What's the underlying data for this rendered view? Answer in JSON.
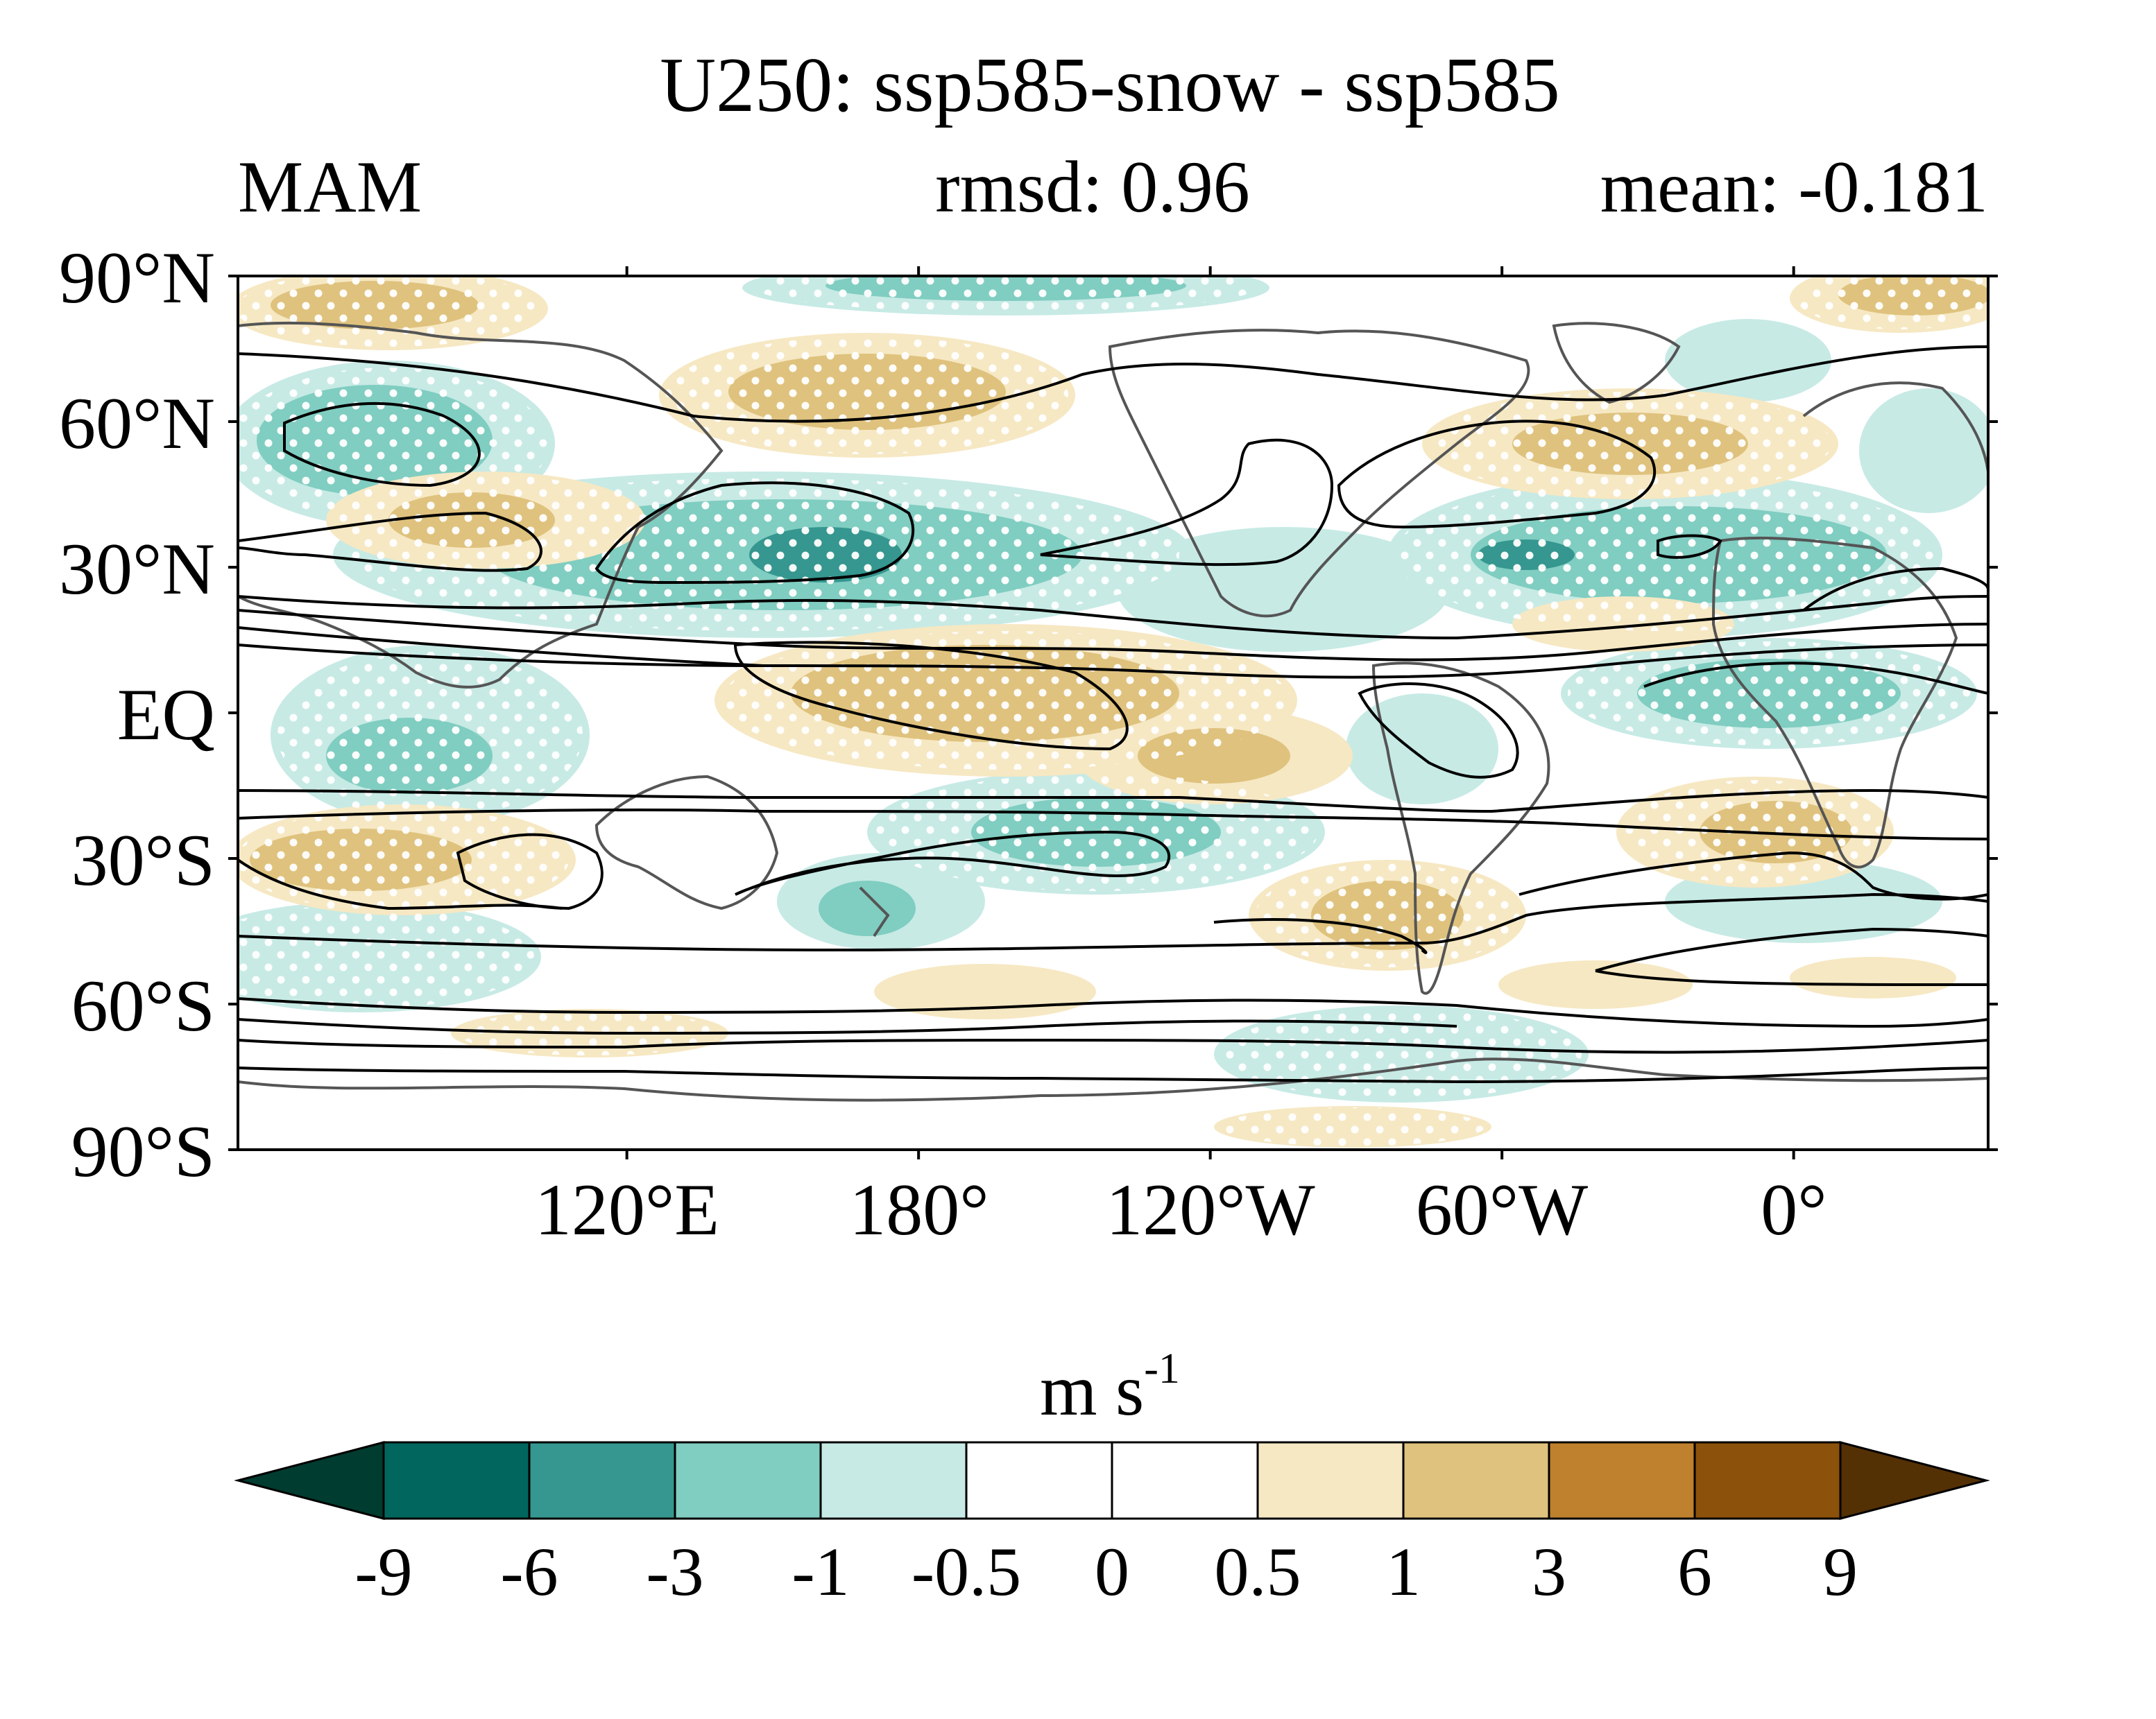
{
  "title": "U250: ssp585-snow - ssp585",
  "season": "MAM",
  "rmsd_text": "rmsd: 0.96",
  "mean_text": "mean: -0.181",
  "map": {
    "lat_labels": [
      "90°N",
      "60°N",
      "30°N",
      "EQ",
      "30°S",
      "60°S",
      "90°S"
    ],
    "lon_labels": [
      "120°E",
      "180°",
      "120°W",
      "60°W",
      "0°"
    ],
    "lon_range": [
      40,
      400
    ],
    "lat_range": [
      -90,
      90
    ],
    "positive_color": "#dfc27d",
    "positive_light_color": "#f6e8c3",
    "negative_color": "#80cdc1",
    "negative_light_color": "#c7eae5",
    "negative_strong_color": "#35978f",
    "contour_color": "#000000",
    "coastline_color": "#555555",
    "stipple_color": "#ffffff"
  },
  "colorbar": {
    "unit": "m s",
    "unit_exp": "-1",
    "tick_labels": [
      "-9",
      "-6",
      "-3",
      "-1",
      "-0.5",
      "0",
      "0.5",
      "1",
      "3",
      "6",
      "9"
    ],
    "colors": [
      "#003c30",
      "#01665e",
      "#35978f",
      "#80cdc1",
      "#c7eae5",
      "#ffffff",
      "#ffffff",
      "#f6e8c3",
      "#dfc27d",
      "#bf812d",
      "#8c510a",
      "#543005"
    ]
  }
}
